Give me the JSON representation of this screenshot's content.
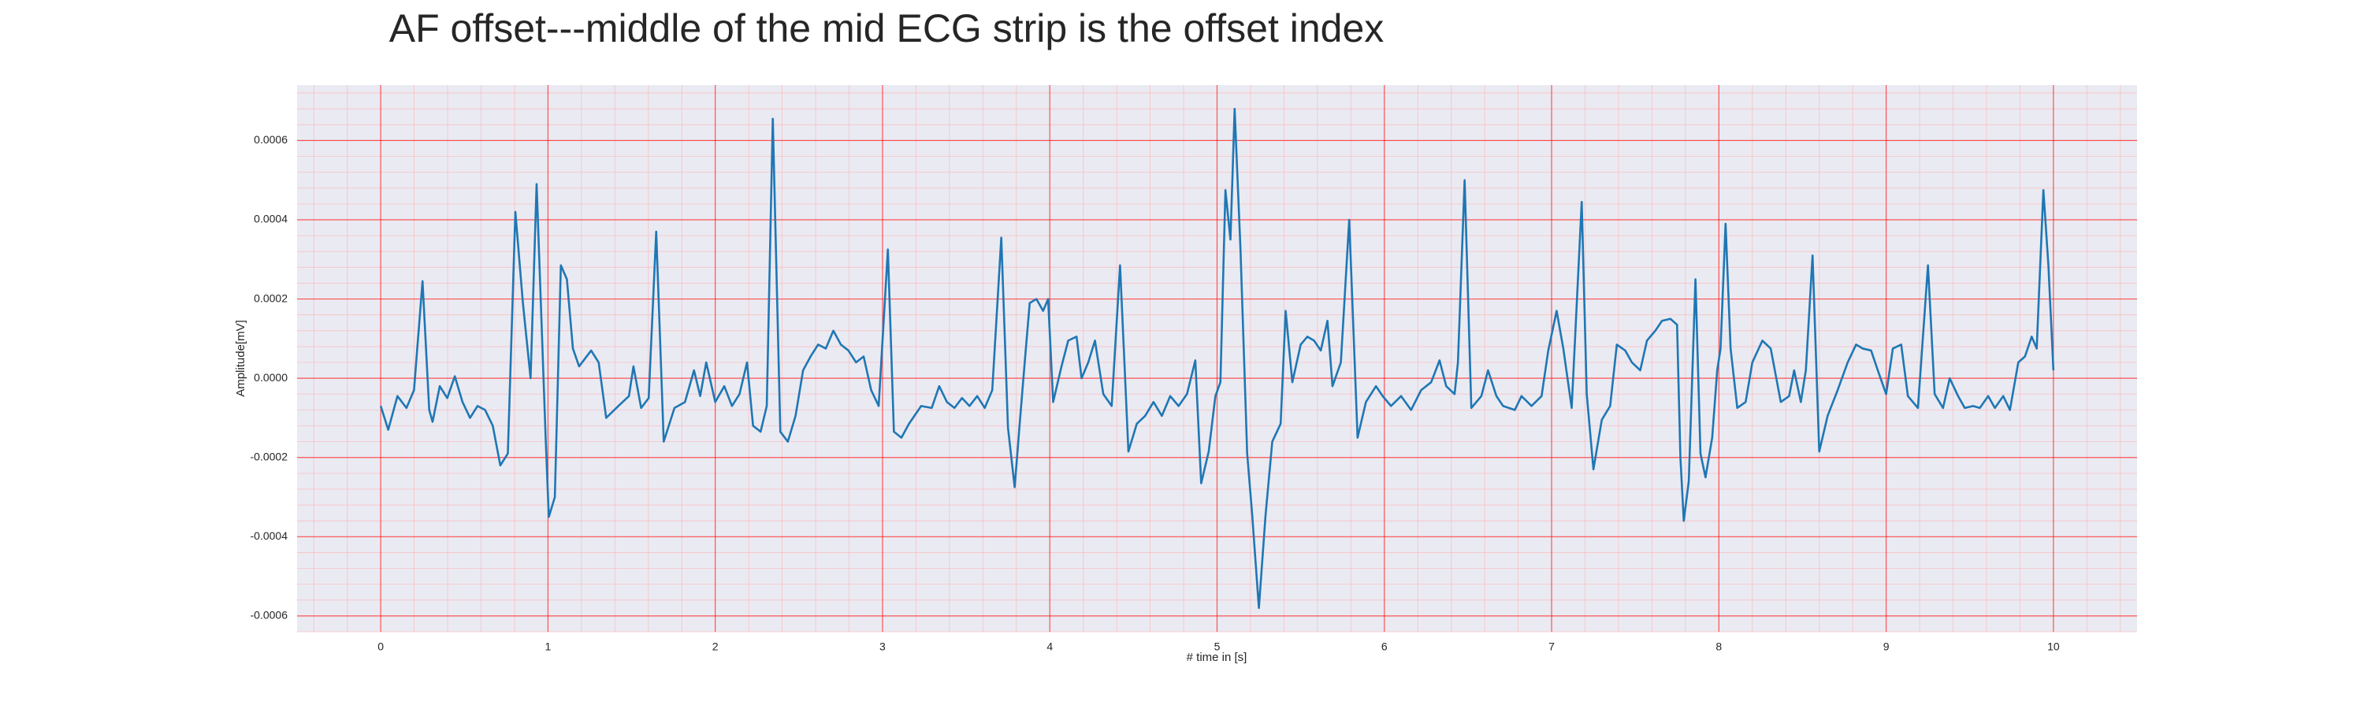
{
  "chart_data": {
    "type": "line",
    "title": "AF offset---middle of the mid ECG strip is the offset index",
    "xlabel": "# time in [s]",
    "ylabel": "Amplitude[mV]",
    "xlim": [
      -0.5,
      10.5
    ],
    "ylim": [
      -0.00064,
      0.00074
    ],
    "xticks": [
      0,
      1,
      2,
      3,
      4,
      5,
      6,
      7,
      8,
      9,
      10
    ],
    "yticks": [
      -0.0006,
      -0.0004,
      -0.0002,
      {
        "value": 0,
        "label": "0.0000"
      },
      0.0002,
      0.0004,
      0.0006
    ],
    "grid": true,
    "minor_grid": true,
    "grid_color": "#ff0000",
    "minor_grid_color": "#ffb0b0",
    "background": "#eaeaf2",
    "series": [
      {
        "color": "#1f77b4",
        "x": [
          0,
          0.045,
          0.1,
          0.154,
          0.199,
          0.25,
          0.29,
          0.31,
          0.353,
          0.398,
          0.443,
          0.489,
          0.534,
          0.579,
          0.624,
          0.67,
          0.715,
          0.76,
          0.805,
          0.85,
          0.896,
          0.932,
          0.986,
          1.005,
          1.041,
          1.077,
          1.113,
          1.149,
          1.186,
          1.258,
          1.303,
          1.348,
          1.421,
          1.484,
          1.511,
          1.557,
          1.602,
          1.647,
          1.692,
          1.756,
          1.819,
          1.873,
          1.91,
          1.946,
          2.0,
          2.054,
          2.1,
          2.145,
          2.19,
          2.226,
          2.271,
          2.308,
          2.344,
          2.389,
          2.434,
          2.48,
          2.525,
          2.57,
          2.615,
          2.661,
          2.706,
          2.751,
          2.796,
          2.842,
          2.887,
          2.932,
          2.977,
          3.032,
          3.068,
          3.113,
          3.158,
          3.231,
          3.294,
          3.339,
          3.385,
          3.43,
          3.475,
          3.52,
          3.566,
          3.611,
          3.656,
          3.71,
          3.75,
          3.79,
          3.82,
          3.85,
          3.88,
          3.92,
          3.96,
          3.99,
          4.02,
          4.07,
          4.11,
          4.16,
          4.19,
          4.23,
          4.27,
          4.32,
          4.37,
          4.42,
          4.47,
          4.52,
          4.57,
          4.62,
          4.67,
          4.72,
          4.77,
          4.82,
          4.87,
          4.905,
          4.95,
          4.99,
          5.02,
          5.05,
          5.08,
          5.105,
          5.14,
          5.18,
          5.21,
          5.25,
          5.29,
          5.33,
          5.38,
          5.41,
          5.45,
          5.5,
          5.54,
          5.58,
          5.62,
          5.66,
          5.69,
          5.74,
          5.79,
          5.84,
          5.89,
          5.95,
          5.99,
          6.04,
          6.1,
          6.16,
          6.22,
          6.28,
          6.33,
          6.37,
          6.42,
          6.44,
          6.48,
          6.52,
          6.58,
          6.62,
          6.67,
          6.71,
          6.78,
          6.82,
          6.88,
          6.94,
          6.98,
          7.03,
          7.07,
          7.12,
          7.18,
          7.21,
          7.25,
          7.3,
          7.35,
          7.39,
          7.44,
          7.48,
          7.53,
          7.57,
          7.62,
          7.66,
          7.71,
          7.75,
          7.77,
          7.79,
          7.82,
          7.86,
          7.89,
          7.92,
          7.96,
          7.99,
          8.01,
          8.04,
          8.07,
          8.11,
          8.16,
          8.2,
          8.26,
          8.31,
          8.37,
          8.42,
          8.45,
          8.49,
          8.52,
          8.56,
          8.6,
          8.65,
          8.71,
          8.77,
          8.82,
          8.86,
          8.91,
          8.95,
          9.0,
          9.04,
          9.09,
          9.13,
          9.19,
          9.25,
          9.29,
          9.34,
          9.38,
          9.43,
          9.47,
          9.52,
          9.56,
          9.61,
          9.65,
          9.7,
          9.74,
          9.79,
          9.83,
          9.87,
          9.9,
          9.94,
          9.97,
          10.0
        ],
        "values": [
          -7e-05,
          -0.00013,
          -4.5e-05,
          -7.5e-05,
          -3e-05,
          0.000245,
          -8e-05,
          -0.00011,
          -2e-05,
          -5e-05,
          5e-06,
          -6e-05,
          -0.0001,
          -7e-05,
          -8e-05,
          -0.00012,
          -0.00022,
          -0.00019,
          0.00042,
          0.00019,
          0,
          0.00049,
          -0.00015,
          -0.00035,
          -0.0003,
          0.000285,
          0.00025,
          7.5e-05,
          3e-05,
          7e-05,
          4e-05,
          -0.0001,
          -7e-05,
          -4.5e-05,
          3e-05,
          -7.5e-05,
          -5e-05,
          0.00037,
          -0.00016,
          -7.5e-05,
          -6e-05,
          2e-05,
          -4.5e-05,
          4e-05,
          -6e-05,
          -2e-05,
          -7e-05,
          -4e-05,
          4e-05,
          -0.00012,
          -0.000135,
          -7e-05,
          0.000655,
          -0.000135,
          -0.00016,
          -9.5e-05,
          2e-05,
          5.5e-05,
          8.5e-05,
          7.5e-05,
          0.00012,
          8.5e-05,
          7e-05,
          4e-05,
          5.5e-05,
          -3e-05,
          -7e-05,
          0.000325,
          -0.000135,
          -0.00015,
          -0.000115,
          -7e-05,
          -7.5e-05,
          -2e-05,
          -6e-05,
          -7.5e-05,
          -5e-05,
          -7e-05,
          -4.5e-05,
          -7.5e-05,
          -3e-05,
          0.000355,
          -0.000125,
          -0.000275,
          -0.000115,
          4e-05,
          0.00019,
          0.0002,
          0.00017,
          0.0002,
          -6e-05,
          3e-05,
          9.5e-05,
          0.000105,
          0,
          4e-05,
          9.5e-05,
          -4e-05,
          -7e-05,
          0.000285,
          -0.000185,
          -0.000115,
          -9.5e-05,
          -6e-05,
          -9.5e-05,
          -4.5e-05,
          -7e-05,
          -4e-05,
          4.5e-05,
          -0.000265,
          -0.000185,
          -4.5e-05,
          -1e-05,
          0.000475,
          0.00035,
          0.00068,
          0.000325,
          -0.00019,
          -0.000345,
          -0.00058,
          -0.000345,
          -0.00016,
          -0.000115,
          0.00017,
          -1e-05,
          8.5e-05,
          0.000105,
          9.5e-05,
          7e-05,
          0.000145,
          -2e-05,
          4e-05,
          0.0004,
          -0.00015,
          -6e-05,
          -2e-05,
          -4.5e-05,
          -7e-05,
          -4.5e-05,
          -8e-05,
          -3e-05,
          -1e-05,
          4.5e-05,
          -2e-05,
          -4e-05,
          4e-05,
          0.0005,
          -7.5e-05,
          -4.5e-05,
          2e-05,
          -4.5e-05,
          -7e-05,
          -8e-05,
          -4.5e-05,
          -7e-05,
          -4.5e-05,
          7e-05,
          0.00017,
          7.5e-05,
          -7.5e-05,
          0.000445,
          -4e-05,
          -0.00023,
          -0.000105,
          -7e-05,
          8.5e-05,
          7e-05,
          4e-05,
          2e-05,
          9.5e-05,
          0.00012,
          0.000145,
          0.00015,
          0.000135,
          -0.0002,
          -0.00036,
          -0.00026,
          0.00025,
          -0.00019,
          -0.00025,
          -0.00015,
          2e-05,
          7.5e-05,
          0.00039,
          7.5e-05,
          -7.5e-05,
          -6e-05,
          4e-05,
          9.5e-05,
          7.5e-05,
          -6e-05,
          -4.5e-05,
          2e-05,
          -6e-05,
          2e-05,
          0.00031,
          -0.000185,
          -9.5e-05,
          -3e-05,
          4e-05,
          8.5e-05,
          7.5e-05,
          7e-05,
          2e-05,
          -4e-05,
          7.5e-05,
          8.5e-05,
          -4.5e-05,
          -7.5e-05,
          0.000285,
          -4e-05,
          -7.5e-05,
          0,
          -4.5e-05,
          -7.5e-05,
          -7e-05,
          -7.5e-05,
          -4.5e-05,
          -7.5e-05,
          -4.5e-05,
          -8e-05,
          4e-05,
          5.5e-05,
          0.000105,
          7.5e-05,
          0.000475,
          0.000285,
          2e-05
        ]
      }
    ]
  }
}
